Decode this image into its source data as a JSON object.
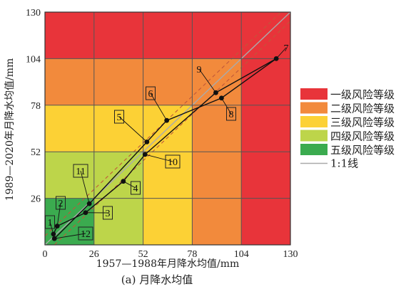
{
  "chart_data": {
    "type": "scatter",
    "caption": "(a) 月降水均值",
    "xlabel": "1957—1988年月降水均值/mm",
    "ylabel": "1989—2020年月降水均值/mm",
    "xlim": [
      0,
      130
    ],
    "ylim": [
      0,
      130
    ],
    "xticks": [
      0,
      26,
      52,
      78,
      104,
      130
    ],
    "yticks": [
      26,
      52,
      78,
      104,
      130
    ],
    "grid": true,
    "legend_position": "right",
    "risk_zones": [
      {
        "level": 1,
        "label": "一级风险等级",
        "color": "#e8343a"
      },
      {
        "level": 2,
        "label": "二级风险等级",
        "color": "#f28a3c"
      },
      {
        "level": 3,
        "label": "三级风险等级",
        "color": "#fcd135"
      },
      {
        "level": 4,
        "label": "四级风险等级",
        "color": "#bdd54a"
      },
      {
        "level": 5,
        "label": "五级风险等级",
        "color": "#3bab4f"
      }
    ],
    "zone_grid": [
      [
        1,
        1,
        1,
        1,
        1
      ],
      [
        2,
        2,
        2,
        2,
        1
      ],
      [
        3,
        3,
        3,
        2,
        1
      ],
      [
        4,
        4,
        3,
        2,
        1
      ],
      [
        5,
        4,
        3,
        2,
        1
      ]
    ],
    "reference_line": {
      "label": "1:1线",
      "color": "#aaaaaa"
    },
    "dashed_lines": {
      "offset": 5,
      "color": "#c0583a"
    },
    "series": [
      {
        "points": [
          {
            "id": "1",
            "x": 4.5,
            "y": 6.0
          },
          {
            "id": "2",
            "x": 6.5,
            "y": 10.5
          },
          {
            "id": "3",
            "x": 21.5,
            "y": 18.0
          },
          {
            "id": "4",
            "x": 41.5,
            "y": 35.5
          },
          {
            "id": "10",
            "x": 53.0,
            "y": 50.5
          },
          {
            "id": "5",
            "x": 54.0,
            "y": 57.5
          },
          {
            "id": "6",
            "x": 64.5,
            "y": 69.5
          },
          {
            "id": "9",
            "x": 90.5,
            "y": 85.0
          },
          {
            "id": "8",
            "x": 93.5,
            "y": 82.0
          },
          {
            "id": "7",
            "x": 122.5,
            "y": 104.0
          },
          {
            "id": "11",
            "x": 23.5,
            "y": 23.0
          },
          {
            "id": "12",
            "x": 5.0,
            "y": 3.5
          }
        ],
        "line_a": [
          "1",
          "2",
          "3",
          "4",
          "10",
          "9",
          "7"
        ],
        "line_b": [
          "12",
          "11",
          "5",
          "6",
          "8",
          "7"
        ]
      }
    ],
    "annotations": [
      {
        "text": "1",
        "point": "1",
        "boxed": true
      },
      {
        "text": "2",
        "point": "2",
        "boxed": true
      },
      {
        "text": "3",
        "point": "3",
        "boxed": true
      },
      {
        "text": "4",
        "point": "4",
        "boxed": true
      },
      {
        "text": "5",
        "point": "5",
        "boxed": true
      },
      {
        "text": "6",
        "point": "6",
        "boxed": true
      },
      {
        "text": "7",
        "point": "7",
        "boxed": false
      },
      {
        "text": "8",
        "point": "8",
        "boxed": true
      },
      {
        "text": "9",
        "point": "9",
        "boxed": false
      },
      {
        "text": "10",
        "point": "10",
        "boxed": true
      },
      {
        "text": "11",
        "point": "11",
        "boxed": true
      },
      {
        "text": "12",
        "point": "12",
        "boxed": true
      }
    ]
  }
}
